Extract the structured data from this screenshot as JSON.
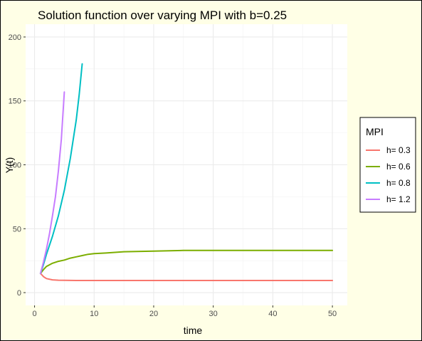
{
  "chart_data": {
    "type": "line",
    "title": "Solution function over varying MPI with b=0.25",
    "xlabel": "time",
    "ylabel": "Y(t)",
    "xlim": [
      -1.5,
      52.5
    ],
    "ylim": [
      -10,
      210
    ],
    "x_ticks": [
      0,
      10,
      20,
      30,
      40,
      50
    ],
    "y_ticks": [
      0,
      50,
      100,
      150,
      200
    ],
    "grid": true,
    "legend": {
      "title": "MPI",
      "position": "right"
    },
    "series": [
      {
        "name": "h= 0.3",
        "color": "#f8766d",
        "points": [
          [
            1,
            15
          ],
          [
            1.5,
            12.5
          ],
          [
            2,
            11
          ],
          [
            3,
            10
          ],
          [
            4,
            9.7
          ],
          [
            5,
            9.6
          ],
          [
            7,
            9.5
          ],
          [
            10,
            9.5
          ],
          [
            20,
            9.5
          ],
          [
            30,
            9.5
          ],
          [
            40,
            9.5
          ],
          [
            50,
            9.5
          ]
        ]
      },
      {
        "name": "h= 0.6",
        "color": "#7cae00",
        "points": [
          [
            1,
            15
          ],
          [
            1.5,
            18
          ],
          [
            2,
            20.5
          ],
          [
            3,
            23
          ],
          [
            4,
            24.5
          ],
          [
            5,
            25.5
          ],
          [
            6,
            27
          ],
          [
            7,
            28
          ],
          [
            8,
            29
          ],
          [
            9,
            30
          ],
          [
            10,
            30.5
          ],
          [
            12,
            31
          ],
          [
            15,
            32
          ],
          [
            20,
            32.5
          ],
          [
            25,
            33
          ],
          [
            30,
            33
          ],
          [
            40,
            33
          ],
          [
            50,
            33
          ]
        ]
      },
      {
        "name": "h= 0.8",
        "color": "#00bfc4",
        "points": [
          [
            1,
            15
          ],
          [
            1.5,
            22
          ],
          [
            2,
            30
          ],
          [
            3,
            44
          ],
          [
            4,
            60
          ],
          [
            5,
            80
          ],
          [
            6,
            105
          ],
          [
            7,
            135
          ],
          [
            7.5,
            155
          ],
          [
            8,
            179
          ]
        ]
      },
      {
        "name": "h= 1.2",
        "color": "#c77cff",
        "points": [
          [
            1,
            15
          ],
          [
            1.5,
            24
          ],
          [
            2,
            34
          ],
          [
            2.5,
            46
          ],
          [
            3,
            60
          ],
          [
            3.5,
            75
          ],
          [
            4,
            95
          ],
          [
            4.5,
            120
          ],
          [
            5,
            157
          ]
        ]
      }
    ]
  }
}
